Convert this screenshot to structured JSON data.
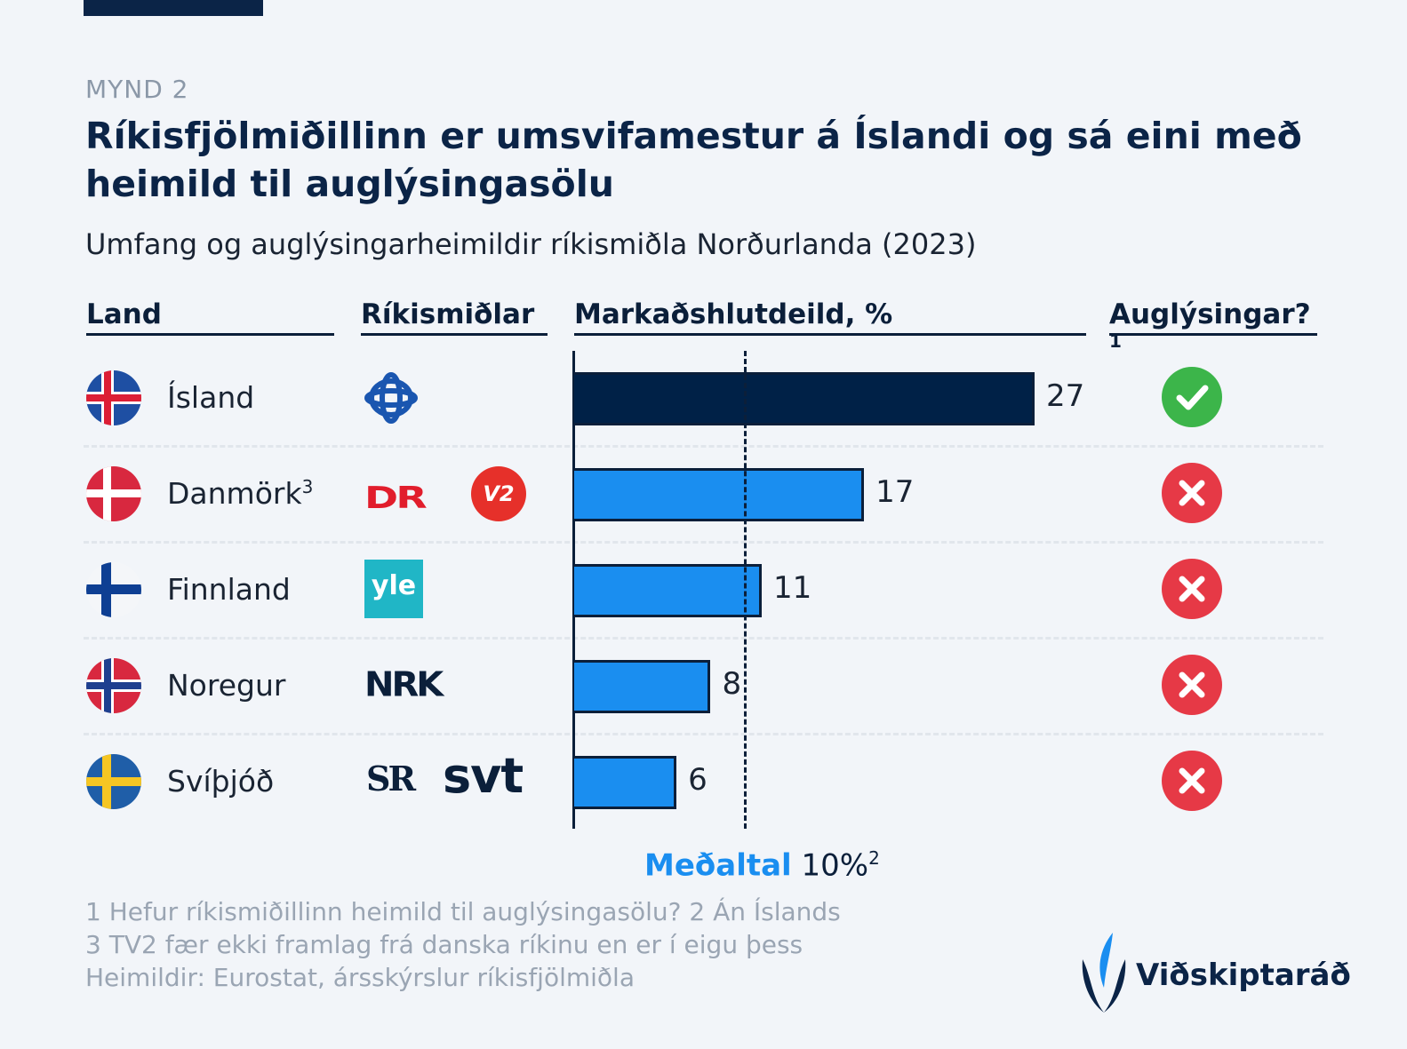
{
  "header": {
    "eyebrow": "MYND 2",
    "title": "Ríkisfjölmiðillinn er umsvifamestur á Íslandi og sá eini með heimild til auglýsingasölu",
    "subtitle": "Umfang og auglýsingarheimildir ríkismiðla Norðurlanda (2023)"
  },
  "columns": {
    "land": "Land",
    "media": "Ríkismiðlar",
    "share": "Markaðshlutdeild, %",
    "ads": "Auglýsingar?",
    "ads_sup": "1"
  },
  "rows": [
    {
      "country": "Ísland",
      "sup": "",
      "media": [
        "RÚV"
      ],
      "ads": "yes"
    },
    {
      "country": "Danmörk",
      "sup": "3",
      "media": [
        "DR",
        "TV2"
      ],
      "ads": "no"
    },
    {
      "country": "Finnland",
      "sup": "",
      "media": [
        "yle"
      ],
      "ads": "no"
    },
    {
      "country": "Noregur",
      "sup": "",
      "media": [
        "NRK"
      ],
      "ads": "no"
    },
    {
      "country": "Svíþjóð",
      "sup": "",
      "media": [
        "SR",
        "svt"
      ],
      "ads": "no"
    }
  ],
  "logos": {
    "dr": "DR",
    "tv2": "V2",
    "yle": "yle",
    "nrk": "NRK",
    "sr": "SR",
    "svt": "svt"
  },
  "chart_data": {
    "type": "bar",
    "orientation": "horizontal",
    "categories": [
      "Ísland",
      "Danmörk",
      "Finnland",
      "Noregur",
      "Svíþjóð"
    ],
    "values": [
      27,
      17,
      11,
      8,
      6
    ],
    "value_labels": [
      "27",
      "17",
      "11",
      "8",
      "6"
    ],
    "unit": "%",
    "reference_line": {
      "value": 10,
      "label": "Meðaltal",
      "value_label": "10%",
      "sup": "2"
    },
    "xlim": [
      0,
      27
    ],
    "grid": false,
    "colors": {
      "highlight": "#002147",
      "default": "#1a8ef0"
    }
  },
  "footnotes": [
    "1 Hefur ríkismiðillinn heimild til auglýsingasölu? 2 Án Íslands",
    "3 TV2 fær ekki framlag frá danska ríkinu en er í eigu þess",
    "Heimildir: Eurostat, ársskýrslur ríkisfjölmiðla"
  ],
  "brand": {
    "name": "Viðskiptaráð",
    "color": "#0b2447"
  },
  "colors": {
    "yes": "#3cb54a",
    "no": "#e63946",
    "navy": "#0b2447",
    "accent": "#1a8ef0"
  }
}
